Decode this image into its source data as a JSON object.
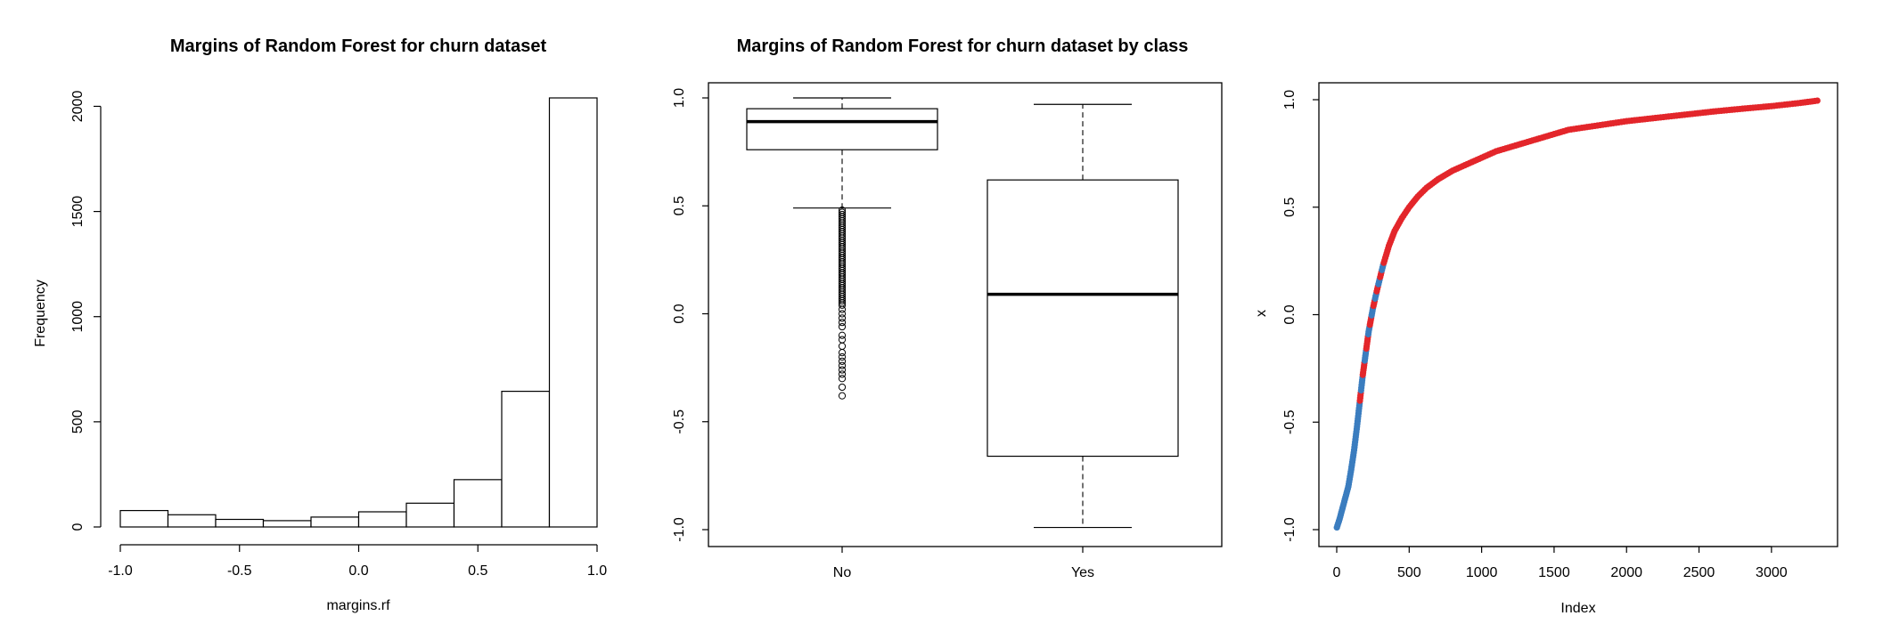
{
  "chart_data": [
    {
      "type": "bar",
      "title": "Margins of Random Forest for churn dataset",
      "xlabel": "margins.rf",
      "ylabel": "Frequency",
      "bins": [
        {
          "from": -1.0,
          "to": -0.8,
          "count": 78
        },
        {
          "from": -0.8,
          "to": -0.6,
          "count": 58
        },
        {
          "from": -0.6,
          "to": -0.4,
          "count": 36
        },
        {
          "from": -0.4,
          "to": -0.2,
          "count": 30
        },
        {
          "from": -0.2,
          "to": 0.0,
          "count": 47
        },
        {
          "from": 0.0,
          "to": 0.2,
          "count": 72
        },
        {
          "from": 0.2,
          "to": 0.4,
          "count": 113
        },
        {
          "from": 0.4,
          "to": 0.6,
          "count": 225
        },
        {
          "from": 0.6,
          "to": 0.8,
          "count": 645
        },
        {
          "from": 0.8,
          "to": 1.0,
          "count": 2040
        }
      ],
      "xlim": [
        -1.0,
        1.0
      ],
      "ylim": [
        0,
        2040
      ],
      "x_ticks": [
        "-1.0",
        "-0.5",
        "0.0",
        "0.5",
        "1.0"
      ],
      "y_ticks": [
        "0",
        "500",
        "1000",
        "1500",
        "2000"
      ],
      "grid": false
    },
    {
      "type": "box",
      "title": "Margins of Random Forest for churn dataset by class",
      "xlabel": "",
      "ylabel": "",
      "categories": [
        "No",
        "Yes"
      ],
      "boxes": [
        {
          "category": "No",
          "whisker_low": 0.49,
          "q1": 0.76,
          "median": 0.89,
          "q3": 0.95,
          "whisker_high": 1.0,
          "outliers": [
            0.48,
            0.47,
            0.46,
            0.45,
            0.44,
            0.43,
            0.42,
            0.41,
            0.4,
            0.39,
            0.38,
            0.37,
            0.36,
            0.35,
            0.34,
            0.33,
            0.32,
            0.31,
            0.3,
            0.29,
            0.28,
            0.27,
            0.26,
            0.25,
            0.24,
            0.23,
            0.22,
            0.21,
            0.2,
            0.19,
            0.18,
            0.17,
            0.16,
            0.15,
            0.14,
            0.13,
            0.12,
            0.11,
            0.1,
            0.09,
            0.08,
            0.07,
            0.06,
            0.05,
            0.04,
            0.02,
            0.0,
            -0.02,
            -0.04,
            -0.06,
            -0.1,
            -0.12,
            -0.15,
            -0.18,
            -0.2,
            -0.22,
            -0.24,
            -0.26,
            -0.28,
            -0.3,
            -0.34,
            -0.38
          ]
        },
        {
          "category": "Yes",
          "whisker_low": -0.99,
          "q1": -0.66,
          "median": 0.09,
          "q3": 0.62,
          "whisker_high": 0.97,
          "outliers": []
        }
      ],
      "ylim": [
        -1.0,
        1.0
      ],
      "y_ticks": [
        "-1.0",
        "-0.5",
        "0.0",
        "0.5",
        "1.0"
      ],
      "grid": false
    },
    {
      "type": "scatter",
      "title": "",
      "xlabel": "Index",
      "ylabel": "x",
      "points": [
        [
          1,
          -0.99
        ],
        [
          20,
          -0.95
        ],
        [
          40,
          -0.9
        ],
        [
          60,
          -0.85
        ],
        [
          80,
          -0.8
        ],
        [
          100,
          -0.72
        ],
        [
          120,
          -0.63
        ],
        [
          140,
          -0.52
        ],
        [
          160,
          -0.4
        ],
        [
          180,
          -0.28
        ],
        [
          200,
          -0.18
        ],
        [
          220,
          -0.08
        ],
        [
          250,
          0.03
        ],
        [
          280,
          0.12
        ],
        [
          320,
          0.23
        ],
        [
          360,
          0.32
        ],
        [
          400,
          0.39
        ],
        [
          450,
          0.45
        ],
        [
          500,
          0.5
        ],
        [
          560,
          0.55
        ],
        [
          620,
          0.59
        ],
        [
          700,
          0.63
        ],
        [
          800,
          0.67
        ],
        [
          900,
          0.7
        ],
        [
          1000,
          0.73
        ],
        [
          1100,
          0.76
        ],
        [
          1250,
          0.79
        ],
        [
          1400,
          0.82
        ],
        [
          1600,
          0.86
        ],
        [
          1800,
          0.88
        ],
        [
          2000,
          0.9
        ],
        [
          2200,
          0.915
        ],
        [
          2400,
          0.93
        ],
        [
          2600,
          0.945
        ],
        [
          2800,
          0.958
        ],
        [
          3000,
          0.97
        ],
        [
          3200,
          0.985
        ],
        [
          3333,
          0.997
        ]
      ],
      "color_blue": "#3b7dbf",
      "color_red": "#e3262b",
      "xlim": [
        0,
        3333
      ],
      "ylim": [
        -1.0,
        1.0
      ],
      "x_ticks": [
        "0",
        "500",
        "1000",
        "1500",
        "2000",
        "2500",
        "3000"
      ],
      "y_ticks": [
        "-1.0",
        "-0.5",
        "0.0",
        "0.5",
        "1.0"
      ],
      "grid": false
    }
  ]
}
